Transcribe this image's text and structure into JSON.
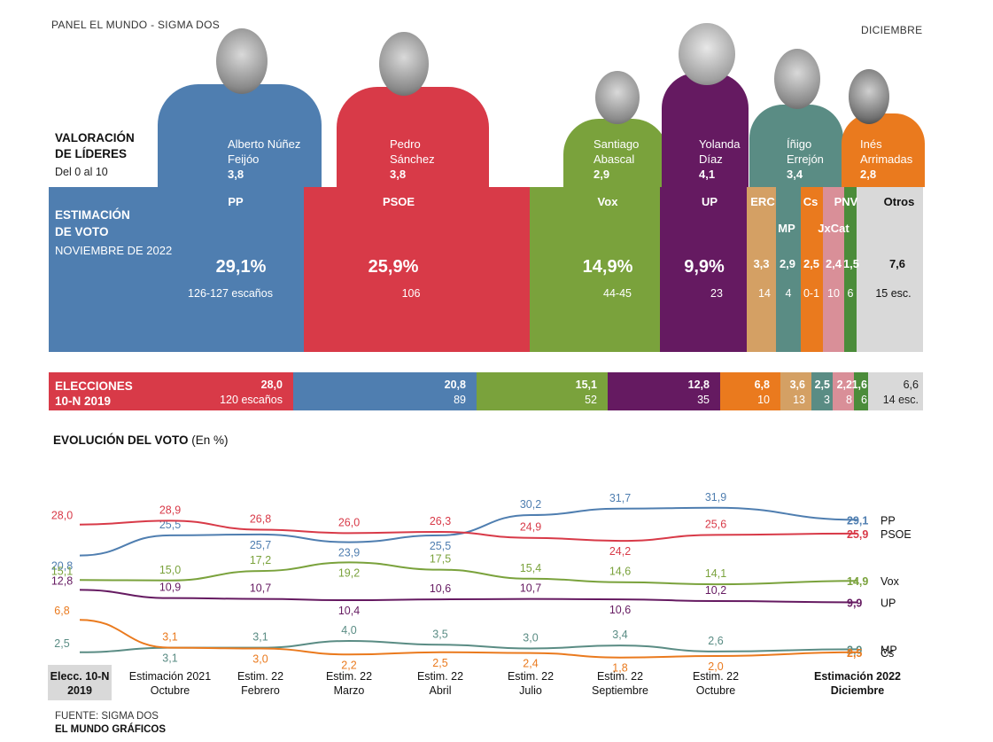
{
  "header": {
    "source_line": "PANEL EL MUNDO - SIGMA DOS",
    "month": "DICIEMBRE"
  },
  "valoracion": {
    "title_1": "VALORACIÓN",
    "title_2": "DE LÍDERES",
    "subtitle": "Del 0 al 10",
    "leaders": [
      {
        "name_1": "Alberto Núñez",
        "name_2": "Feijóo",
        "score": "3,8",
        "color": "#4f7eb0"
      },
      {
        "name_1": "Pedro",
        "name_2": "Sánchez",
        "score": "3,8",
        "color": "#d83a48"
      },
      {
        "name_1": "Santiago",
        "name_2": "Abascal",
        "score": "2,9",
        "color": "#7aa23c"
      },
      {
        "name_1": "Yolanda",
        "name_2": "Díaz",
        "score": "4,1",
        "color": "#651a61"
      },
      {
        "name_1": "Íñigo",
        "name_2": "Errejón",
        "score": "3,4",
        "color": "#5a8c84"
      },
      {
        "name_1": "Inés",
        "name_2": "Arrimadas",
        "score": "2,8",
        "color": "#ea7a1e"
      }
    ]
  },
  "estimacion": {
    "title_1": "ESTIMACIÓN",
    "title_2": "DE VOTO",
    "date": "NOVIEMBRE DE 2022"
  },
  "elecciones": {
    "title_1": "ELECCIONES",
    "title_2": "10-N  2019"
  },
  "evolucion": {
    "title": "EVOLUCIÓN DEL VOTO",
    "unit": "(En %)"
  },
  "footer": {
    "source": "FUENTE: SIGMA DOS",
    "credit": "EL MUNDO GRÁFICOS"
  },
  "chart_data": [
    {
      "type": "bar",
      "title": "ESTIMACIÓN DE VOTO NOVIEMBRE DE 2022",
      "categories": [
        "PP",
        "PSOE",
        "Vox",
        "UP",
        "ERC",
        "MP",
        "Cs",
        "JxCat",
        "PNV",
        "Otros"
      ],
      "values": [
        29.1,
        25.9,
        14.9,
        9.9,
        3.3,
        2.9,
        2.5,
        2.4,
        1.5,
        7.6
      ],
      "value_labels": [
        "29,1%",
        "25,9%",
        "14,9%",
        "9,9%",
        "3,3",
        "2,9",
        "2,5",
        "2,4",
        "1,5",
        "7,6"
      ],
      "seats": [
        "126-127 escaños",
        "106",
        "44-45",
        "23",
        "14",
        "4",
        "0-1",
        "10",
        "6",
        "15 esc."
      ],
      "colors": [
        "#4f7eb0",
        "#d83a48",
        "#7aa23c",
        "#651a61",
        "#d4a064",
        "#5a8c84",
        "#ea7a1e",
        "#d98f98",
        "#4b8c3a",
        "#d9d9d9"
      ]
    },
    {
      "type": "bar",
      "title": "ELECCIONES 10-N 2019",
      "categories": [
        "PSOE",
        "PP",
        "Vox",
        "UP",
        "Cs",
        "ERC",
        "MP",
        "JxCat",
        "PNV",
        "Otros"
      ],
      "values": [
        28.0,
        20.8,
        15.1,
        12.8,
        6.8,
        3.6,
        2.5,
        2.2,
        1.6,
        6.6
      ],
      "value_labels": [
        "28,0",
        "20,8",
        "15,1",
        "12,8",
        "6,8",
        "3,6",
        "2,5",
        "2,2",
        "1,6",
        "6,6"
      ],
      "seats": [
        "120 escaños",
        "89",
        "52",
        "35",
        "10",
        "13",
        "3",
        "8",
        "6",
        "14 esc."
      ],
      "colors": [
        "#d83a48",
        "#4f7eb0",
        "#7aa23c",
        "#651a61",
        "#ea7a1e",
        "#d4a064",
        "#5a8c84",
        "#d98f98",
        "#4b8c3a",
        "#d9d9d9"
      ]
    },
    {
      "type": "line",
      "title": "EVOLUCIÓN DEL VOTO (En %)",
      "x": [
        {
          "l1": "Elecc. 10-N",
          "l2": "2019"
        },
        {
          "l1": "Estimación 2021",
          "l2": "Octubre"
        },
        {
          "l1": "Estim. 22",
          "l2": "Febrero"
        },
        {
          "l1": "Estim. 22",
          "l2": "Marzo"
        },
        {
          "l1": "Estim. 22",
          "l2": "Abril"
        },
        {
          "l1": "Estim. 22",
          "l2": "Julio"
        },
        {
          "l1": "Estim. 22",
          "l2": "Septiembre"
        },
        {
          "l1": "Estim. 22",
          "l2": "Octubre"
        },
        {
          "l1": "Estimación 2022",
          "l2": "Diciembre"
        }
      ],
      "series": [
        {
          "name": "PP",
          "color": "#4f7eb0",
          "values": [
            20.8,
            25.5,
            25.7,
            23.9,
            25.5,
            30.2,
            31.7,
            31.9,
            29.1
          ],
          "labels": [
            "20,8",
            "25,5",
            "25,7",
            "23,9",
            "25,5",
            "30,2",
            "31,7",
            "31,9",
            "29,1"
          ]
        },
        {
          "name": "PSOE",
          "color": "#d83a48",
          "values": [
            28.0,
            28.9,
            26.8,
            26.0,
            26.3,
            24.9,
            24.2,
            25.6,
            25.9
          ],
          "labels": [
            "28,0",
            "28,9",
            "26,8",
            "26,0",
            "26,3",
            "24,9",
            "24,2",
            "25,6",
            "25,9"
          ]
        },
        {
          "name": "Vox",
          "color": "#7aa23c",
          "values": [
            15.1,
            15.0,
            17.2,
            19.2,
            17.5,
            15.4,
            14.6,
            14.1,
            14.9
          ],
          "labels": [
            "15,1",
            "15,0",
            "17,2",
            "19,2",
            "17,5",
            "15,4",
            "14,6",
            "14,1",
            "14,9"
          ]
        },
        {
          "name": "UP",
          "color": "#651a61",
          "values": [
            12.8,
            10.9,
            10.7,
            10.4,
            10.6,
            10.7,
            10.6,
            10.2,
            9.9
          ],
          "labels": [
            "12,8",
            "10,9",
            "10,7",
            "10,4",
            "10,6",
            "10,7",
            "10,6",
            "10,2",
            "9,9"
          ]
        },
        {
          "name": "MP",
          "color": "#5a8c84",
          "values": [
            2.5,
            3.1,
            3.1,
            4.0,
            3.5,
            3.0,
            3.4,
            2.6,
            2.9
          ],
          "labels": [
            "2,5",
            "3,1",
            "3,1",
            "4,0",
            "3,5",
            "3,0",
            "3,4",
            "2,6",
            "2,9"
          ]
        },
        {
          "name": "Cs",
          "color": "#ea7a1e",
          "values": [
            6.8,
            3.1,
            3.0,
            2.2,
            2.5,
            2.4,
            1.8,
            2.0,
            2.5
          ],
          "labels": [
            "6,8",
            "3,1",
            "3,0",
            "2,2",
            "2,5",
            "2,4",
            "1,8",
            "2,0",
            "2,5"
          ]
        }
      ]
    }
  ]
}
